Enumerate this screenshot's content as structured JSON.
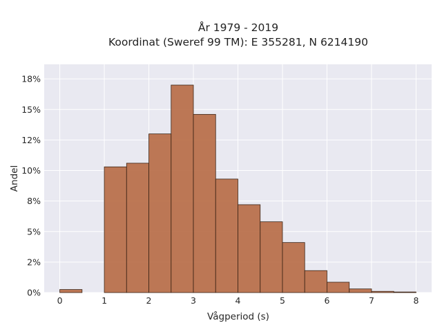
{
  "chart_data": {
    "type": "bar",
    "title_lines": [
      "År 1979 - 2019",
      "Koordinat (Sweref 99 TM): E 355281, N 6214190"
    ],
    "xlabel": "Vågperiod (s)",
    "ylabel": "Andel",
    "bin_width": 0.5,
    "bins": [
      {
        "start": 0.0,
        "value": 0.25
      },
      {
        "start": 1.0,
        "value": 10.3
      },
      {
        "start": 1.5,
        "value": 10.6
      },
      {
        "start": 2.0,
        "value": 13.0
      },
      {
        "start": 2.5,
        "value": 17.0
      },
      {
        "start": 3.0,
        "value": 14.6
      },
      {
        "start": 3.5,
        "value": 9.3
      },
      {
        "start": 4.0,
        "value": 7.2
      },
      {
        "start": 4.5,
        "value": 5.8
      },
      {
        "start": 5.0,
        "value": 4.1
      },
      {
        "start": 5.5,
        "value": 1.8
      },
      {
        "start": 6.0,
        "value": 0.85
      },
      {
        "start": 6.5,
        "value": 0.3
      },
      {
        "start": 7.0,
        "value": 0.1
      },
      {
        "start": 7.5,
        "value": 0.05
      }
    ],
    "xlim": [
      -0.35,
      8.35
    ],
    "ylim": [
      0,
      18.7
    ],
    "x_ticks": [
      0,
      1,
      2,
      3,
      4,
      5,
      6,
      7,
      8
    ],
    "x_tick_labels": [
      "0",
      "1",
      "2",
      "3",
      "4",
      "5",
      "6",
      "7",
      "8"
    ],
    "y_ticks": [
      0,
      2.5,
      5,
      7.5,
      10,
      12.5,
      15,
      17.5
    ],
    "y_tick_labels": [
      "0%",
      "2%",
      "5%",
      "8%",
      "10%",
      "12%",
      "15%",
      "18%"
    ],
    "grid": true,
    "colors": {
      "bar": "#b5663f",
      "edge": "#3a2416",
      "background": "#e9e9f1",
      "grid": "#ffffff"
    }
  }
}
